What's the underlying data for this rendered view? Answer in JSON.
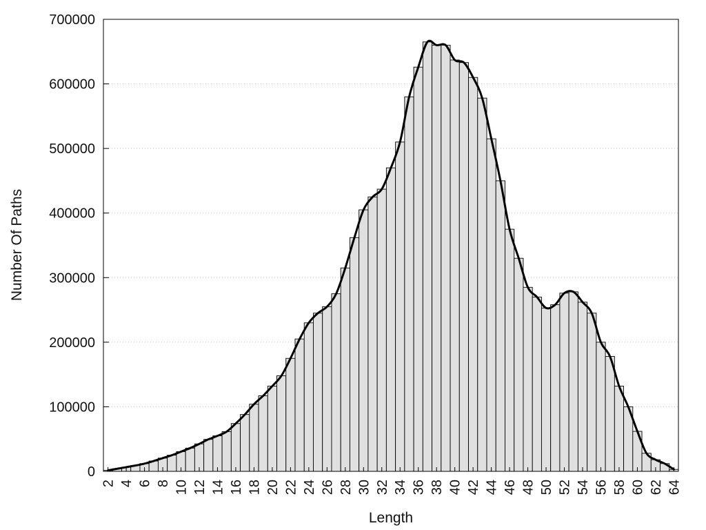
{
  "chart_data": {
    "type": "bar",
    "title": "",
    "xlabel": "Length",
    "ylabel": "Number Of Paths",
    "x": [
      2,
      3,
      4,
      5,
      6,
      7,
      8,
      9,
      10,
      11,
      12,
      13,
      14,
      15,
      16,
      17,
      18,
      19,
      20,
      21,
      22,
      23,
      24,
      25,
      26,
      27,
      28,
      29,
      30,
      31,
      32,
      33,
      34,
      35,
      36,
      37,
      38,
      39,
      40,
      41,
      42,
      43,
      44,
      45,
      46,
      47,
      48,
      49,
      50,
      51,
      52,
      53,
      54,
      55,
      56,
      57,
      58,
      59,
      60,
      61,
      62,
      63,
      64
    ],
    "values": [
      1500,
      4000,
      6500,
      9000,
      12000,
      16000,
      20500,
      25000,
      30500,
      36000,
      42500,
      49500,
      55000,
      61500,
      74000,
      88000,
      104000,
      117000,
      132000,
      148000,
      175000,
      205000,
      230000,
      245000,
      255000,
      275000,
      315000,
      362000,
      405000,
      425000,
      437000,
      470000,
      510000,
      580000,
      626000,
      665000,
      660000,
      660000,
      637000,
      633000,
      610000,
      578000,
      515000,
      450000,
      375000,
      330000,
      285000,
      270000,
      253000,
      258000,
      276000,
      278000,
      262000,
      245000,
      200000,
      178000,
      132000,
      100000,
      62000,
      28000,
      18000,
      12000,
      3000
    ],
    "series": [
      {
        "type": "bar",
        "values": [
          1500,
          4000,
          6500,
          9000,
          12000,
          16000,
          20500,
          25000,
          30500,
          36000,
          42500,
          49500,
          55000,
          61500,
          74000,
          88000,
          104000,
          117000,
          132000,
          148000,
          175000,
          205000,
          230000,
          245000,
          255000,
          275000,
          315000,
          362000,
          405000,
          425000,
          437000,
          470000,
          510000,
          580000,
          626000,
          665000,
          660000,
          660000,
          637000,
          633000,
          610000,
          578000,
          515000,
          450000,
          375000,
          330000,
          285000,
          270000,
          253000,
          258000,
          276000,
          278000,
          262000,
          245000,
          200000,
          178000,
          132000,
          100000,
          62000,
          28000,
          18000,
          12000,
          3000
        ]
      },
      {
        "type": "line",
        "values": [
          1500,
          4000,
          6500,
          9000,
          12000,
          16000,
          20500,
          25000,
          30500,
          36000,
          42500,
          49500,
          55000,
          61500,
          74000,
          88000,
          104000,
          117000,
          132000,
          148000,
          175000,
          205000,
          230000,
          245000,
          255000,
          275000,
          315000,
          362000,
          405000,
          425000,
          437000,
          470000,
          510000,
          580000,
          626000,
          665000,
          660000,
          660000,
          637000,
          633000,
          610000,
          578000,
          515000,
          450000,
          375000,
          330000,
          285000,
          270000,
          253000,
          258000,
          276000,
          278000,
          262000,
          245000,
          200000,
          178000,
          132000,
          100000,
          62000,
          28000,
          18000,
          12000,
          3000
        ]
      }
    ],
    "xticks": [
      "2",
      "4",
      "6",
      "8",
      "10",
      "12",
      "14",
      "16",
      "18",
      "20",
      "22",
      "24",
      "26",
      "28",
      "30",
      "32",
      "34",
      "36",
      "38",
      "40",
      "42",
      "44",
      "46",
      "48",
      "50",
      "52",
      "54",
      "56",
      "58",
      "60",
      "62",
      "64"
    ],
    "yticks": [
      "0",
      "100000",
      "200000",
      "300000",
      "400000",
      "500000",
      "600000",
      "700000"
    ],
    "xlim": [
      1.5,
      64.5
    ],
    "ylim": [
      0,
      700000
    ],
    "grid": true,
    "colors": {
      "bar_fill": "#e0e0e0",
      "bar_stroke": "#000000",
      "line": "#000000",
      "grid": "#c8c8c8"
    }
  }
}
